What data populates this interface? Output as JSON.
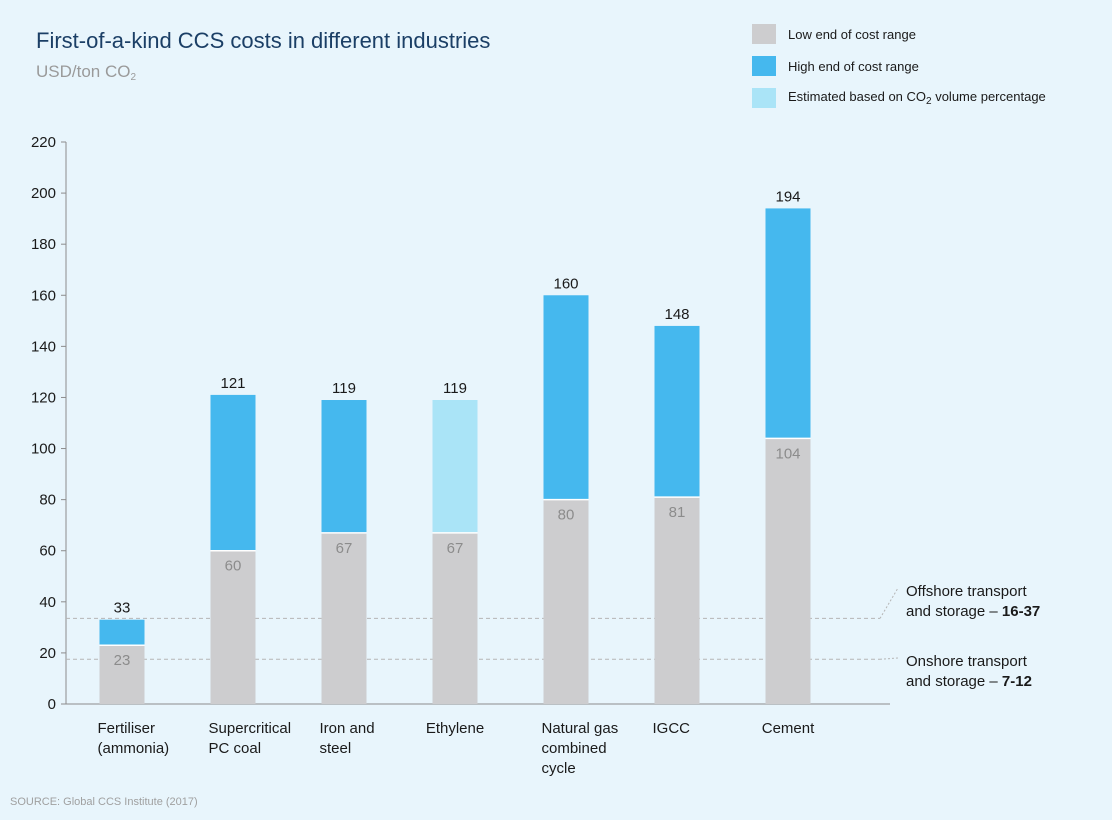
{
  "chart_data": {
    "type": "bar",
    "title": "First-of-a-kind CCS costs in different industries",
    "subtitle_text": "USD/ton CO",
    "subtitle_sub": "2",
    "categories": [
      [
        "Fertiliser",
        "(ammonia)"
      ],
      [
        "Supercritical",
        "PC coal"
      ],
      [
        "Iron and",
        "steel"
      ],
      [
        "Ethylene"
      ],
      [
        "Natural gas",
        "combined",
        "cycle"
      ],
      [
        "IGCC"
      ],
      [
        "Cement"
      ]
    ],
    "low": [
      23,
      60,
      67,
      67,
      80,
      81,
      104
    ],
    "high": [
      33,
      121,
      119,
      119,
      160,
      148,
      194
    ],
    "estimated": [
      false,
      false,
      false,
      true,
      false,
      false,
      false
    ],
    "ylim": [
      0,
      220
    ],
    "yticks": [
      0,
      20,
      40,
      60,
      80,
      100,
      120,
      140,
      160,
      180,
      200,
      220
    ],
    "legend": [
      {
        "label": "Low end of cost range",
        "color": "#cdcdcf"
      },
      {
        "label": "High end of cost range",
        "color": "#45b8ee"
      },
      {
        "label": "Estimated based on CO",
        "sub": "2",
        "suffix": " volume percentage",
        "color": "#aae4f7"
      }
    ],
    "reference_lines": [
      {
        "value": 33.5,
        "line1": "Offshore transport",
        "line2_prefix": "and storage – ",
        "line2_bold": "16-37"
      },
      {
        "value": 17.5,
        "line1": "Onshore transport",
        "line2_prefix": "and storage – ",
        "line2_bold": "7-12"
      }
    ],
    "colors": {
      "low": "#cdcdcf",
      "high": "#45b8ee",
      "estimated": "#aae4f7",
      "axis": "#8c8c8c",
      "ref": "#b5b5b5"
    }
  },
  "source": "SOURCE: Global CCS Institute (2017)"
}
